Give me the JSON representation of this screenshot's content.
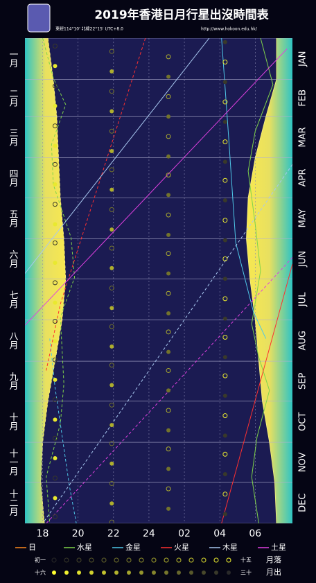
{
  "chart_data": {
    "type": "rise-set",
    "title": "2019年香港日月行星出沒時間表",
    "subtitle": "東經114°10'  北緯22°15'  UTC+8.0",
    "url": "http://www.hokoon.edu.hk/",
    "xlim": [
      17,
      32.1
    ],
    "xticks": [
      18,
      20,
      22,
      24,
      {
        "value": 26,
        "label": "02"
      },
      {
        "value": 28,
        "label": "04"
      },
      {
        "value": 30,
        "label": "06"
      }
    ],
    "ylim": [
      0,
      365
    ],
    "yticks": [
      0,
      31,
      59,
      90,
      120,
      151,
      181,
      212,
      243,
      273,
      304,
      334,
      365
    ],
    "months_zh": [
      "一月",
      "二月",
      "三月",
      "四月",
      "五月",
      "六月",
      "七月",
      "八月",
      "九月",
      "十月",
      "十一月",
      "十二月"
    ],
    "months_en": [
      "JAN",
      "FEB",
      "MAR",
      "APR",
      "MAY",
      "JUN",
      "JUL",
      "AUG",
      "SEP",
      "OCT",
      "NOV",
      "DEC"
    ],
    "grid": true,
    "series": [
      {
        "name": "日",
        "color": "#ff8a1c",
        "twilight": true,
        "rise": {
          "x": [
            31.2,
            31.2,
            30.6,
            30.0,
            29.6,
            29.5,
            29.7,
            30.0,
            30.2,
            30.4,
            30.8,
            31.1,
            31.2
          ],
          "y": [
            0,
            31,
            59,
            90,
            120,
            151,
            181,
            212,
            243,
            273,
            304,
            334,
            365
          ]
        },
        "set": {
          "x": [
            18.3,
            18.6,
            18.8,
            18.9,
            19.0,
            19.2,
            19.3,
            19.1,
            18.7,
            18.3,
            18.0,
            17.9,
            18.1
          ],
          "y": [
            0,
            31,
            59,
            90,
            120,
            151,
            181,
            212,
            243,
            273,
            304,
            334,
            365
          ]
        }
      },
      {
        "name": "水星",
        "color": "#7fd44a",
        "rise": {
          "x": [
            30.3,
            31.0,
            30.0,
            29.6,
            30.0,
            30.3,
            29.8,
            30.2,
            30.8,
            30.1,
            29.8,
            30.2
          ],
          "y": [
            0,
            35,
            70,
            100,
            140,
            175,
            215,
            240,
            265,
            300,
            330,
            365
          ]
        },
        "set": {
          "x": [
            18.0,
            18.6,
            19.3,
            18.5,
            18.6,
            19.6,
            19.8,
            19.0,
            19.2,
            19.0,
            18.2,
            18.4
          ],
          "y": [
            0,
            30,
            50,
            80,
            110,
            150,
            180,
            210,
            260,
            290,
            330,
            365
          ]
        }
      },
      {
        "name": "金星",
        "color": "#4fc8e8",
        "rise": {
          "x": [
            28.1,
            28.5,
            28.9,
            29.9,
            30.6
          ],
          "y": [
            0,
            75,
            154,
            206,
            226
          ]
        },
        "set": {
          "x": [
            18.4,
            18.7,
            19.5,
            19.9
          ],
          "y": [
            226,
            263,
            336,
            365
          ]
        }
      },
      {
        "name": "火星",
        "color": "#ff3030",
        "rise": {
          "x": [
            32.1,
            28.1
          ],
          "y": [
            170,
            365
          ]
        },
        "set": {
          "x": [
            23.8,
            19.0,
            18.2
          ],
          "y": [
            0,
            200,
            250
          ]
        }
      },
      {
        "name": "木星",
        "color": "#a8c8f0",
        "rise": {
          "x": [
            27.4,
            17.0
          ],
          "y": [
            0,
            177
          ]
        },
        "set": {
          "x": [
            32.1,
            18.0
          ],
          "y": [
            95,
            365
          ]
        }
      },
      {
        "name": "土星",
        "color": "#e040e0",
        "rise": {
          "x": [
            31.8,
            17.0
          ],
          "y": [
            8,
            216
          ]
        },
        "set": {
          "x": [
            32.1,
            18.2
          ],
          "y": [
            165,
            365
          ]
        }
      }
    ],
    "moon_colors": [
      "#2a2a2a",
      "#ffff30"
    ],
    "moon": [
      {
        "label": "月落",
        "first": "初一",
        "last": "十五",
        "filled": false,
        "x": [
          18.7,
          21.9,
          25.1,
          28.3,
          18.7,
          21.9,
          25.1,
          28.3,
          18.7,
          21.9,
          25.1,
          28.3,
          18.7,
          21.9,
          25.1,
          28.3,
          18.7,
          21.9,
          25.1,
          28.3,
          18.7,
          21.9,
          25.1,
          28.3,
          18.7,
          21.9,
          25.1,
          28.3,
          18.7,
          21.9,
          25.1,
          28.3,
          18.7,
          21.9,
          25.1,
          28.3,
          18.7,
          21.9,
          25.1,
          28.3,
          18.7,
          21.9,
          25.1,
          28.3,
          18.7,
          21.9,
          25.1,
          28.3,
          18.7,
          21.9
        ],
        "y": [
          6,
          10,
          14,
          18,
          36,
          40,
          44,
          48,
          66,
          70,
          74,
          78,
          95,
          99,
          103,
          107,
          125,
          129,
          133,
          137,
          154,
          158,
          162,
          166,
          184,
          188,
          192,
          196,
          213,
          217,
          221,
          225,
          242,
          246,
          250,
          254,
          272,
          276,
          280,
          284,
          301,
          305,
          309,
          313,
          331,
          335,
          339,
          343,
          360,
          364
        ],
        "phase": [
          2,
          6,
          10,
          14,
          2,
          6,
          10,
          14,
          2,
          6,
          10,
          14,
          2,
          6,
          10,
          14,
          2,
          6,
          10,
          14,
          2,
          6,
          10,
          14,
          2,
          6,
          10,
          14,
          2,
          6,
          10,
          14,
          2,
          6,
          10,
          14,
          2,
          6,
          10,
          14,
          2,
          6,
          10,
          14,
          2,
          6,
          10,
          14,
          2,
          6
        ]
      },
      {
        "label": "月出",
        "first": "十六",
        "last": "三十",
        "filled": true,
        "x": [
          28.3,
          18.7,
          21.9,
          25.1,
          28.3,
          18.7,
          21.9,
          25.1,
          28.3,
          18.7,
          21.9,
          25.1,
          28.3,
          18.7,
          21.9,
          25.1,
          28.3,
          18.7,
          21.9,
          25.1,
          28.3,
          18.7,
          21.9,
          25.1,
          28.3,
          18.7,
          21.9,
          25.1,
          28.3,
          18.7,
          21.9,
          25.1,
          28.3,
          18.7,
          21.9,
          25.1,
          28.3,
          18.7,
          21.9,
          25.1,
          28.3,
          18.7,
          21.9,
          25.1,
          28.3,
          18.7,
          21.9,
          25.1,
          28.3
        ],
        "y": [
          3,
          21,
          25,
          29,
          33,
          51,
          55,
          59,
          63,
          81,
          85,
          89,
          93,
          110,
          114,
          118,
          122,
          140,
          144,
          148,
          152,
          169,
          173,
          177,
          181,
          199,
          203,
          207,
          211,
          228,
          232,
          236,
          240,
          257,
          261,
          265,
          269,
          287,
          291,
          295,
          299,
          316,
          320,
          324,
          328,
          346,
          350,
          354,
          358
        ],
        "phase": [
          29,
          17,
          21,
          25,
          29,
          17,
          21,
          25,
          29,
          17,
          21,
          25,
          29,
          17,
          21,
          25,
          29,
          17,
          21,
          25,
          29,
          17,
          21,
          25,
          29,
          17,
          21,
          25,
          29,
          17,
          21,
          25,
          29,
          17,
          21,
          25,
          29,
          17,
          21,
          25,
          29,
          17,
          21,
          25,
          29,
          17,
          21,
          25,
          29
        ]
      }
    ]
  }
}
